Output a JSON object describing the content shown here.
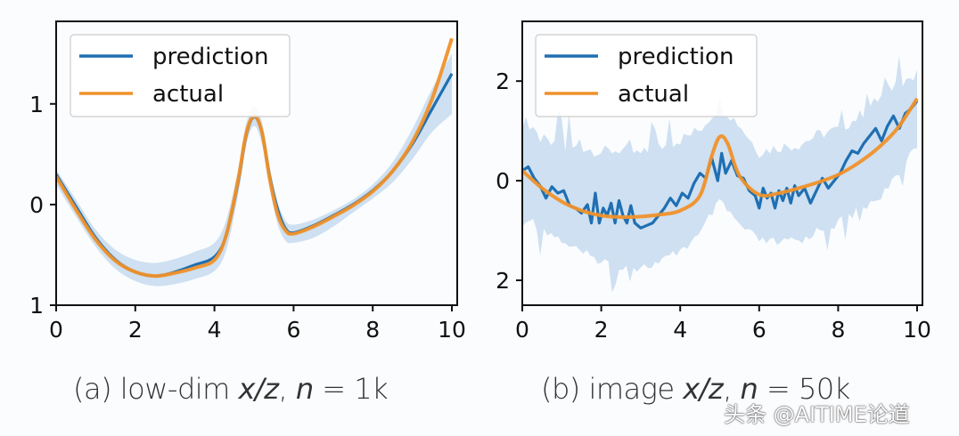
{
  "colors": {
    "prediction": "#1f6fb2",
    "actual": "#f0912a",
    "band": "#c5dbef",
    "axis": "#111111",
    "legend_border": "#cccccc"
  },
  "chart_data": [
    {
      "type": "line",
      "panel": "a",
      "caption_prefix": "(a) low-dim ",
      "caption_var": "x/z",
      "caption_mid": ", ",
      "caption_n": "n",
      "caption_suffix": " = 1k",
      "xlim": [
        0,
        10
      ],
      "ylim": [
        -1,
        1.82
      ],
      "xticks": [
        0,
        2,
        4,
        6,
        8,
        10
      ],
      "xtick_labels": [
        "0",
        "2",
        "4",
        "6",
        "8",
        "10"
      ],
      "yticks": [
        -1,
        0,
        1
      ],
      "ytick_labels": [
        "1",
        "0",
        "1"
      ],
      "legend": {
        "position": "top-left",
        "entries": [
          "prediction",
          "actual"
        ]
      },
      "x": [
        0,
        0.5,
        1,
        1.5,
        2,
        2.5,
        3,
        3.5,
        4,
        4.3,
        4.6,
        4.8,
        5.0,
        5.2,
        5.4,
        5.6,
        5.8,
        6.0,
        6.5,
        7,
        7.5,
        8,
        8.5,
        9,
        9.5,
        10
      ],
      "series": [
        {
          "name": "actual",
          "values": [
            0.28,
            -0.05,
            -0.35,
            -0.56,
            -0.67,
            -0.71,
            -0.68,
            -0.63,
            -0.55,
            -0.3,
            0.25,
            0.7,
            0.88,
            0.72,
            0.25,
            -0.1,
            -0.26,
            -0.29,
            -0.22,
            -0.12,
            -0.01,
            0.13,
            0.33,
            0.62,
            1.05,
            1.65
          ]
        },
        {
          "name": "prediction",
          "values": [
            0.3,
            -0.02,
            -0.33,
            -0.55,
            -0.67,
            -0.71,
            -0.67,
            -0.6,
            -0.52,
            -0.3,
            0.22,
            0.68,
            0.87,
            0.72,
            0.28,
            -0.05,
            -0.24,
            -0.28,
            -0.21,
            -0.11,
            0.0,
            0.14,
            0.33,
            0.6,
            0.95,
            1.3
          ]
        },
        {
          "name": "band_upper",
          "values": [
            0.35,
            0.05,
            -0.25,
            -0.45,
            -0.55,
            -0.58,
            -0.54,
            -0.47,
            -0.38,
            -0.15,
            0.35,
            0.8,
            0.97,
            0.82,
            0.36,
            0.02,
            -0.16,
            -0.2,
            -0.15,
            -0.06,
            0.05,
            0.2,
            0.42,
            0.75,
            1.15,
            1.5
          ]
        },
        {
          "name": "band_lower",
          "values": [
            0.2,
            -0.12,
            -0.42,
            -0.64,
            -0.76,
            -0.81,
            -0.79,
            -0.74,
            -0.66,
            -0.45,
            0.1,
            0.58,
            0.78,
            0.6,
            0.15,
            -0.2,
            -0.36,
            -0.38,
            -0.33,
            -0.22,
            -0.08,
            0.06,
            0.22,
            0.45,
            0.72,
            0.9
          ]
        }
      ]
    },
    {
      "type": "line",
      "panel": "b",
      "caption_prefix": "(b) image ",
      "caption_var": "x/z",
      "caption_mid": ", ",
      "caption_n": "n",
      "caption_suffix": " = 50k",
      "xlim": [
        0,
        10
      ],
      "ylim": [
        -2.5,
        3.2
      ],
      "xticks": [
        0,
        2,
        4,
        6,
        8,
        10
      ],
      "xtick_labels": [
        "0",
        "2",
        "4",
        "6",
        "8",
        "10"
      ],
      "yticks": [
        -2,
        0,
        2
      ],
      "ytick_labels": [
        "2",
        "0",
        "2"
      ],
      "legend": {
        "position": "top-left",
        "entries": [
          "prediction",
          "actual"
        ]
      },
      "x": [
        0,
        0.5,
        1,
        1.5,
        2,
        2.5,
        3,
        3.5,
        4,
        4.5,
        4.8,
        5.0,
        5.2,
        5.5,
        6.0,
        6.5,
        7,
        7.5,
        8,
        8.5,
        9,
        9.5,
        10
      ],
      "series": [
        {
          "name": "actual",
          "values": [
            0.2,
            -0.15,
            -0.42,
            -0.6,
            -0.7,
            -0.73,
            -0.72,
            -0.68,
            -0.6,
            -0.3,
            0.5,
            0.88,
            0.75,
            0.1,
            -0.28,
            -0.25,
            -0.15,
            -0.03,
            0.12,
            0.35,
            0.65,
            1.05,
            1.65
          ]
        },
        {
          "name": "prediction",
          "x": [
            0,
            0.15,
            0.3,
            0.45,
            0.6,
            0.75,
            0.9,
            1.05,
            1.2,
            1.35,
            1.5,
            1.65,
            1.75,
            1.85,
            1.95,
            2.05,
            2.15,
            2.25,
            2.35,
            2.45,
            2.55,
            2.65,
            2.75,
            2.85,
            3.0,
            3.15,
            3.3,
            3.45,
            3.6,
            3.75,
            3.9,
            4.05,
            4.2,
            4.35,
            4.5,
            4.65,
            4.8,
            4.95,
            5.05,
            5.15,
            5.3,
            5.45,
            5.6,
            5.75,
            5.9,
            6.0,
            6.1,
            6.2,
            6.3,
            6.4,
            6.5,
            6.6,
            6.7,
            6.8,
            6.9,
            7.0,
            7.15,
            7.3,
            7.45,
            7.6,
            7.75,
            7.9,
            8.05,
            8.2,
            8.35,
            8.5,
            8.65,
            8.8,
            8.95,
            9.1,
            9.25,
            9.4,
            9.55,
            9.7,
            9.85,
            10
          ],
          "values": [
            0.2,
            0.28,
            0.05,
            -0.1,
            -0.35,
            -0.12,
            -0.25,
            -0.2,
            -0.5,
            -0.55,
            -0.65,
            -0.48,
            -0.85,
            -0.25,
            -0.85,
            -0.55,
            -0.7,
            -0.45,
            -0.85,
            -0.4,
            -0.7,
            -0.85,
            -0.5,
            -0.85,
            -0.95,
            -0.9,
            -0.85,
            -0.7,
            -0.55,
            -0.35,
            -0.5,
            -0.25,
            -0.35,
            -0.05,
            0.15,
            0.05,
            0.45,
            0.0,
            0.55,
            0.15,
            0.4,
            0.1,
            0.05,
            -0.2,
            -0.3,
            -0.55,
            -0.15,
            -0.35,
            -0.25,
            -0.55,
            -0.2,
            -0.4,
            -0.15,
            -0.45,
            -0.1,
            -0.3,
            -0.15,
            -0.45,
            -0.2,
            0.05,
            -0.15,
            0.0,
            0.15,
            0.4,
            0.6,
            0.55,
            0.75,
            0.9,
            1.05,
            0.8,
            1.1,
            1.3,
            1.05,
            1.35,
            1.45,
            1.6
          ]
        },
        {
          "name": "band_upper",
          "values": [
            1.0,
            0.7,
            0.5,
            0.55,
            0.45,
            0.5,
            0.4,
            0.55,
            0.7,
            0.9,
            1.2,
            1.4,
            1.25,
            1.0,
            0.45,
            0.55,
            0.6,
            0.8,
            0.9,
            1.15,
            1.5,
            1.85,
            2.0
          ]
        },
        {
          "name": "band_lower",
          "values": [
            -0.6,
            -0.85,
            -1.1,
            -1.35,
            -1.5,
            -1.6,
            -1.65,
            -1.55,
            -1.3,
            -1.0,
            -0.55,
            -0.35,
            -0.5,
            -0.8,
            -1.1,
            -1.15,
            -1.1,
            -0.9,
            -0.75,
            -0.5,
            -0.25,
            0.15,
            0.85
          ]
        }
      ]
    }
  ],
  "captions": {
    "a": {
      "prefix": "(a) low-dim ",
      "var": "x/z",
      "mid": ", ",
      "n": "n",
      "suffix": " = 1k"
    },
    "b": {
      "prefix": "(b) image ",
      "var": "x/z",
      "mid": ", ",
      "n": "n",
      "suffix": " = 50k"
    }
  },
  "watermark": "头条 @AITIME论道"
}
